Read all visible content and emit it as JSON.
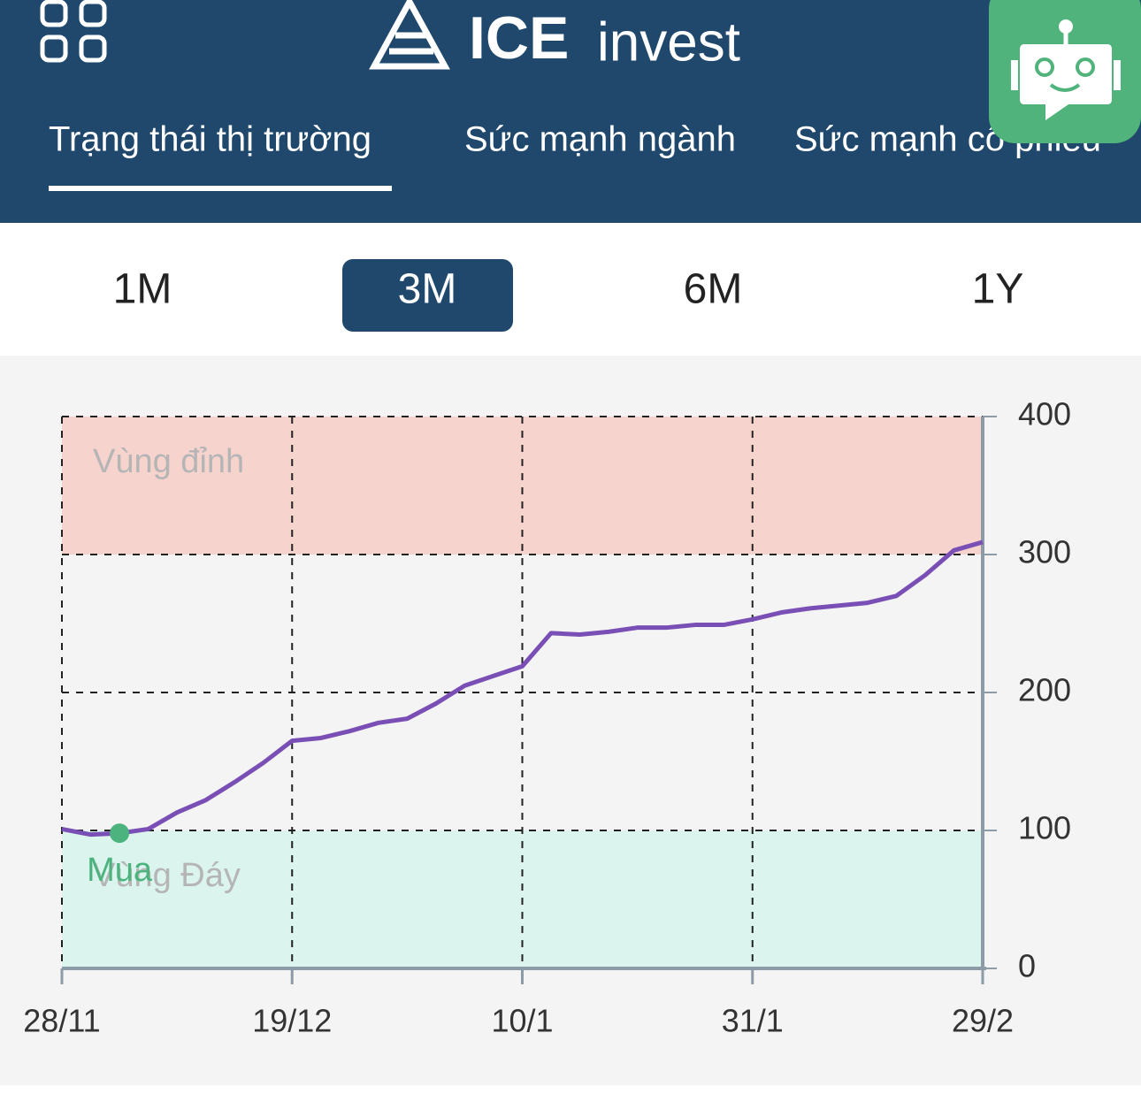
{
  "header": {
    "logo": "ICE",
    "logo_suffix": "invest"
  },
  "tabs": [
    "Trạng thái thị trường",
    "Sức mạnh ngành",
    "Sức mạnh cổ phiếu"
  ],
  "active_tab": 0,
  "ranges": [
    "1M",
    "3M",
    "6M",
    "1Y"
  ],
  "active_range": 1,
  "chart_data": {
    "type": "line",
    "categories": [
      "28/11",
      null,
      null,
      null,
      null,
      null,
      null,
      null,
      "19/12",
      null,
      null,
      null,
      null,
      null,
      null,
      null,
      "10/1",
      null,
      null,
      null,
      null,
      null,
      null,
      null,
      "31/1",
      null,
      null,
      null,
      null,
      null,
      null,
      null,
      "29/2"
    ],
    "values": [
      101,
      97,
      98,
      101,
      113,
      122,
      135,
      149,
      165,
      167,
      172,
      178,
      181,
      192,
      205,
      212,
      219,
      243,
      242,
      244,
      247,
      247,
      249,
      249,
      253,
      258,
      261,
      263,
      265,
      270,
      285,
      303,
      309
    ],
    "color": "#7a4fb5",
    "ylim": [
      0,
      400
    ],
    "yticks": [
      0,
      100,
      200,
      300,
      400
    ],
    "grid": true,
    "zones": [
      {
        "label": "Vùng đỉnh",
        "from": 300,
        "to": 400,
        "color": "#f7d3ce"
      },
      {
        "label": "Vùng Đáy",
        "from": 0,
        "to": 100,
        "color": "#dbf4ed"
      }
    ],
    "buy_marker": {
      "label": "Mua",
      "index": 2,
      "value": 98,
      "color": "#4cb37f"
    }
  }
}
